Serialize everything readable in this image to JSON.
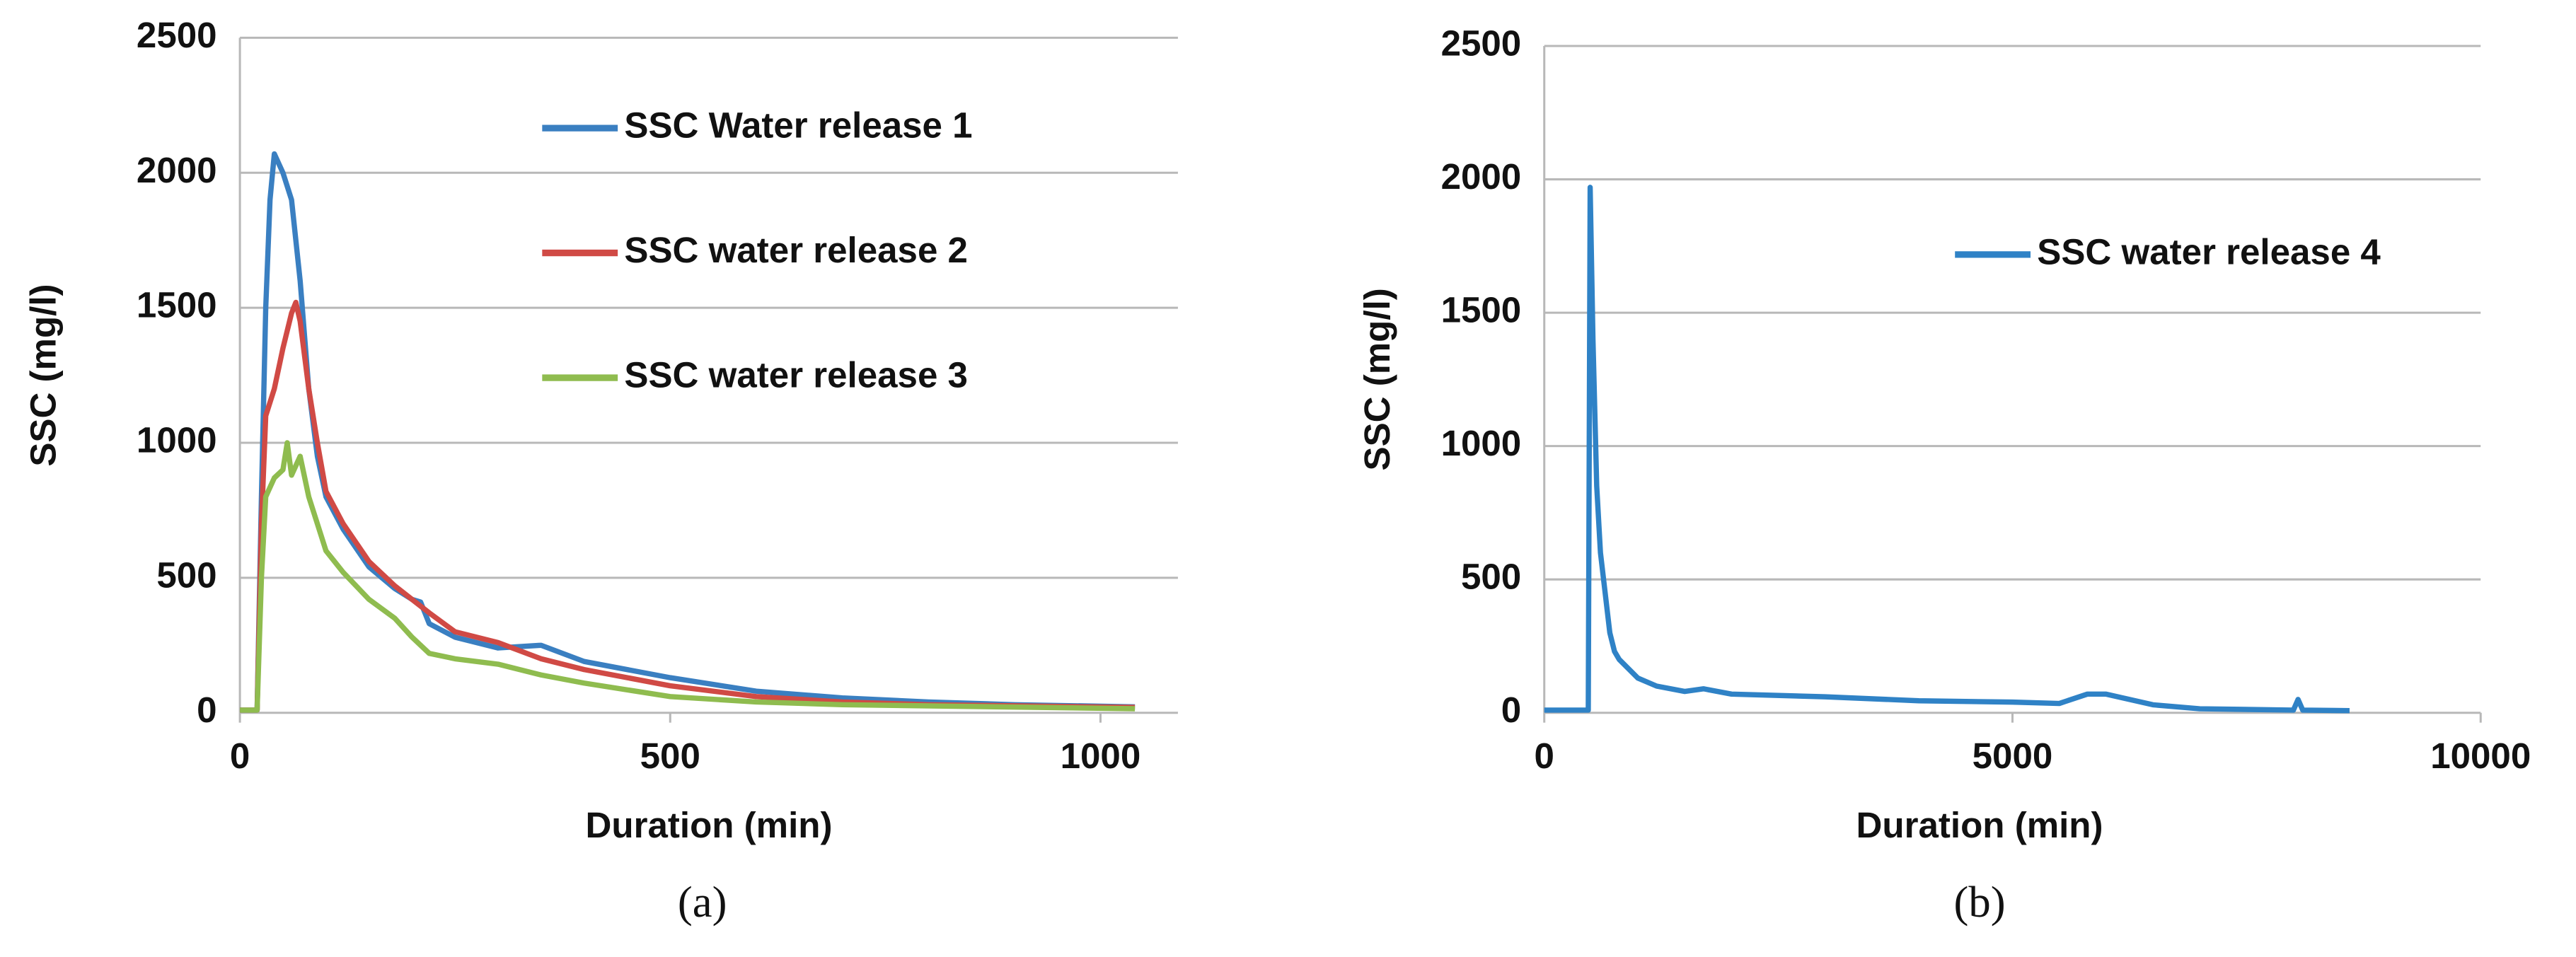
{
  "chart_data": [
    {
      "type": "line",
      "caption": "(a)",
      "xlabel": "Duration (min)",
      "ylabel": "SSC (mg/l)",
      "xlim": [
        0,
        1090
      ],
      "xticks": [
        0,
        500,
        1000
      ],
      "ylim": [
        0,
        2500
      ],
      "yticks": [
        0,
        500,
        1000,
        1500,
        2000,
        2500
      ],
      "grid": true,
      "legend": "upper right",
      "series": [
        {
          "name": "SSC Water release 1",
          "color": "#3a7fc1",
          "x": [
            0,
            20,
            25,
            30,
            35,
            40,
            50,
            60,
            70,
            80,
            90,
            100,
            120,
            150,
            180,
            200,
            210,
            220,
            250,
            300,
            350,
            400,
            500,
            600,
            700,
            800,
            900,
            1040
          ],
          "values": [
            10,
            10,
            800,
            1500,
            1900,
            2070,
            2000,
            1900,
            1600,
            1200,
            950,
            800,
            680,
            540,
            460,
            420,
            410,
            330,
            280,
            240,
            250,
            190,
            130,
            80,
            55,
            40,
            30,
            22
          ]
        },
        {
          "name": "SSC water release 2",
          "color": "#d04a45",
          "x": [
            0,
            20,
            25,
            30,
            40,
            50,
            60,
            65,
            70,
            80,
            90,
            100,
            120,
            150,
            180,
            200,
            220,
            250,
            300,
            350,
            400,
            500,
            600,
            700,
            800,
            1040
          ],
          "values": [
            10,
            10,
            700,
            1100,
            1200,
            1350,
            1480,
            1520,
            1450,
            1200,
            1000,
            820,
            700,
            560,
            470,
            420,
            370,
            300,
            260,
            200,
            160,
            100,
            60,
            40,
            30,
            20
          ]
        },
        {
          "name": "SSC water release 3",
          "color": "#8fbc4f",
          "x": [
            0,
            20,
            25,
            30,
            40,
            50,
            55,
            60,
            70,
            80,
            90,
            100,
            120,
            150,
            180,
            200,
            220,
            250,
            300,
            350,
            400,
            500,
            600,
            700,
            1040
          ],
          "values": [
            10,
            10,
            500,
            800,
            870,
            900,
            1000,
            880,
            950,
            800,
            700,
            600,
            520,
            420,
            350,
            280,
            220,
            200,
            180,
            140,
            110,
            60,
            40,
            30,
            15
          ]
        }
      ]
    },
    {
      "type": "line",
      "caption": "(b)",
      "xlabel": "Duration (min)",
      "ylabel": "SSC (mg/l)",
      "xlim": [
        0,
        10000
      ],
      "xticks": [
        0,
        5000,
        10000
      ],
      "ylim": [
        0,
        2500
      ],
      "yticks": [
        0,
        500,
        1000,
        1500,
        2000,
        2500
      ],
      "grid": true,
      "legend": "center right",
      "series": [
        {
          "name": "SSC water release 4",
          "color": "#2f82c6",
          "x": [
            0,
            450,
            470,
            490,
            520,
            560,
            600,
            650,
            700,
            750,
            800,
            1000,
            1200,
            1500,
            1700,
            2000,
            3000,
            4000,
            5000,
            5500,
            5800,
            6000,
            6500,
            7000,
            8000,
            8050,
            8100,
            8600
          ],
          "values": [
            10,
            10,
            10,
            1970,
            1400,
            850,
            600,
            450,
            300,
            230,
            200,
            130,
            100,
            80,
            90,
            70,
            60,
            45,
            40,
            35,
            70,
            70,
            30,
            15,
            10,
            50,
            10,
            8
          ]
        }
      ]
    }
  ]
}
